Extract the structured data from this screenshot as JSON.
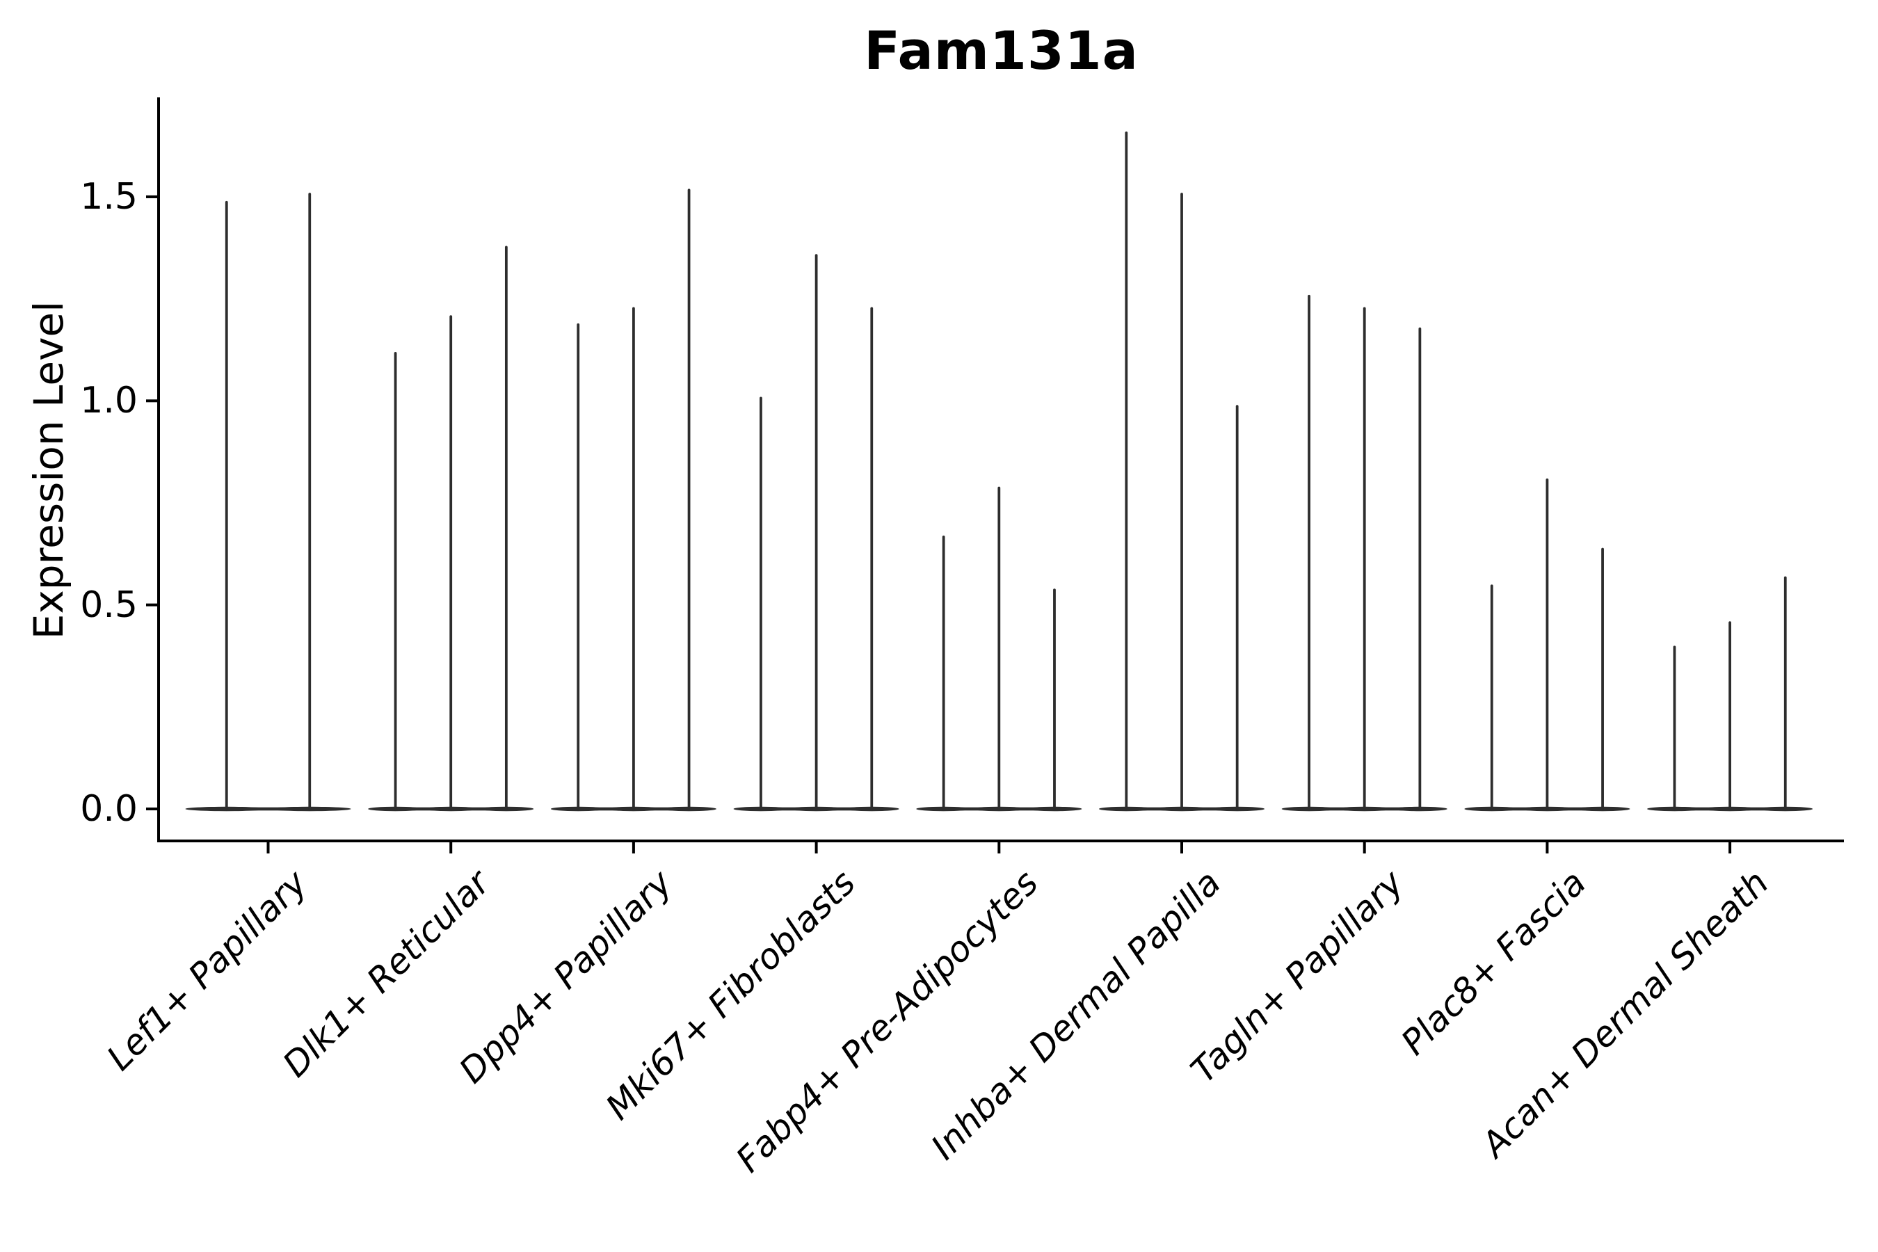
{
  "chart_data": {
    "type": "violin",
    "title": "Fam131a",
    "ylabel": "Expression Level",
    "xlabel": "",
    "yticks": [
      0.0,
      0.5,
      1.0,
      1.5
    ],
    "ylim": [
      -0.08,
      1.74
    ],
    "grid": false,
    "legend": "none",
    "x_tick_label_rotation_deg": 45,
    "x_tick_label_style": "italic",
    "background_color": "#ffffff",
    "axis_color": "#000000",
    "violin_color": "#2d2d2d",
    "groups": [
      {
        "label": "Lef1+ Papillary",
        "violin_peaks": [
          1.49,
          1.51
        ]
      },
      {
        "label": "Dlk1+ Reticular",
        "violin_peaks": [
          1.12,
          1.21,
          1.38
        ]
      },
      {
        "label": "Dpp4+ Papillary",
        "violin_peaks": [
          1.19,
          1.23,
          1.52
        ]
      },
      {
        "label": "Mki67+ Fibroblasts",
        "violin_peaks": [
          1.01,
          1.36,
          1.23
        ]
      },
      {
        "label": "Fabp4+ Pre-Adipocytes",
        "violin_peaks": [
          0.67,
          0.79,
          0.54
        ]
      },
      {
        "label": "Inhba+ Dermal Papilla",
        "violin_peaks": [
          1.66,
          1.51,
          0.99
        ]
      },
      {
        "label": "Tagln+ Papillary",
        "violin_peaks": [
          1.26,
          1.23,
          1.18
        ]
      },
      {
        "label": "Plac8+ Fascia",
        "violin_peaks": [
          0.55,
          0.81,
          0.64
        ]
      },
      {
        "label": "Acan+ Dermal Sheath",
        "violin_peaks": [
          0.4,
          0.46,
          0.57
        ]
      }
    ]
  }
}
